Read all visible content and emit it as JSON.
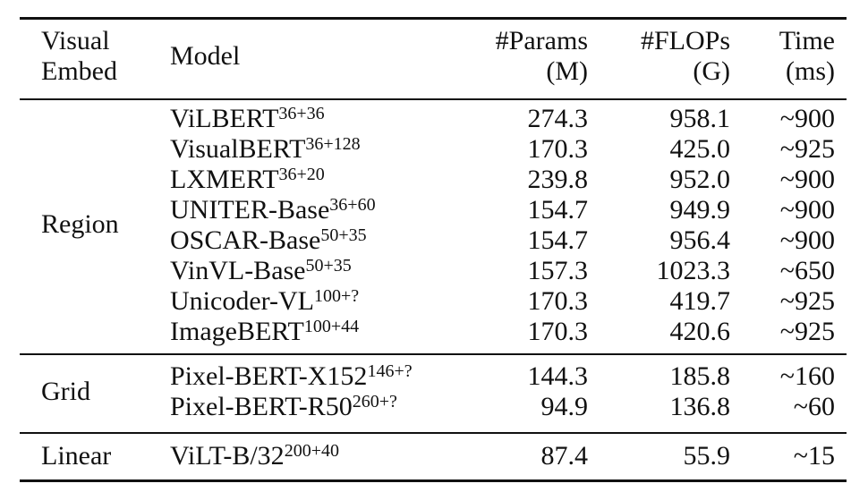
{
  "header": {
    "visual_embed": [
      "Visual",
      "Embed"
    ],
    "model": "Model",
    "params": [
      "#Params",
      "(M)"
    ],
    "flops": [
      "#FLOPs",
      "(G)"
    ],
    "time": [
      "Time",
      "(ms)"
    ]
  },
  "groups": [
    {
      "name": "Region",
      "rows": [
        {
          "model": "ViLBERT",
          "sup": "36+36",
          "params": "274.3",
          "flops": "958.1",
          "time": "~900"
        },
        {
          "model": "VisualBERT",
          "sup": "36+128",
          "params": "170.3",
          "flops": "425.0",
          "time": "~925"
        },
        {
          "model": "LXMERT",
          "sup": "36+20",
          "params": "239.8",
          "flops": "952.0",
          "time": "~900"
        },
        {
          "model": "UNITER-Base",
          "sup": "36+60",
          "params": "154.7",
          "flops": "949.9",
          "time": "~900"
        },
        {
          "model": "OSCAR-Base",
          "sup": "50+35",
          "params": "154.7",
          "flops": "956.4",
          "time": "~900"
        },
        {
          "model": "VinVL-Base",
          "sup": "50+35",
          "params": "157.3",
          "flops": "1023.3",
          "time": "~650"
        },
        {
          "model": "Unicoder-VL",
          "sup": "100+?",
          "params": "170.3",
          "flops": "419.7",
          "time": "~925"
        },
        {
          "model": "ImageBERT",
          "sup": "100+44",
          "params": "170.3",
          "flops": "420.6",
          "time": "~925"
        }
      ]
    },
    {
      "name": "Grid",
      "rows": [
        {
          "model": "Pixel-BERT-X152",
          "sup": "146+?",
          "params": "144.3",
          "flops": "185.8",
          "time": "~160"
        },
        {
          "model": "Pixel-BERT-R50",
          "sup": "260+?",
          "params": "94.9",
          "flops": "136.8",
          "time": "~60"
        }
      ]
    },
    {
      "name": "Linear",
      "rows": [
        {
          "model": "ViLT-B/32",
          "sup": "200+40",
          "params": "87.4",
          "flops": "55.9",
          "time": "~15"
        }
      ]
    }
  ]
}
